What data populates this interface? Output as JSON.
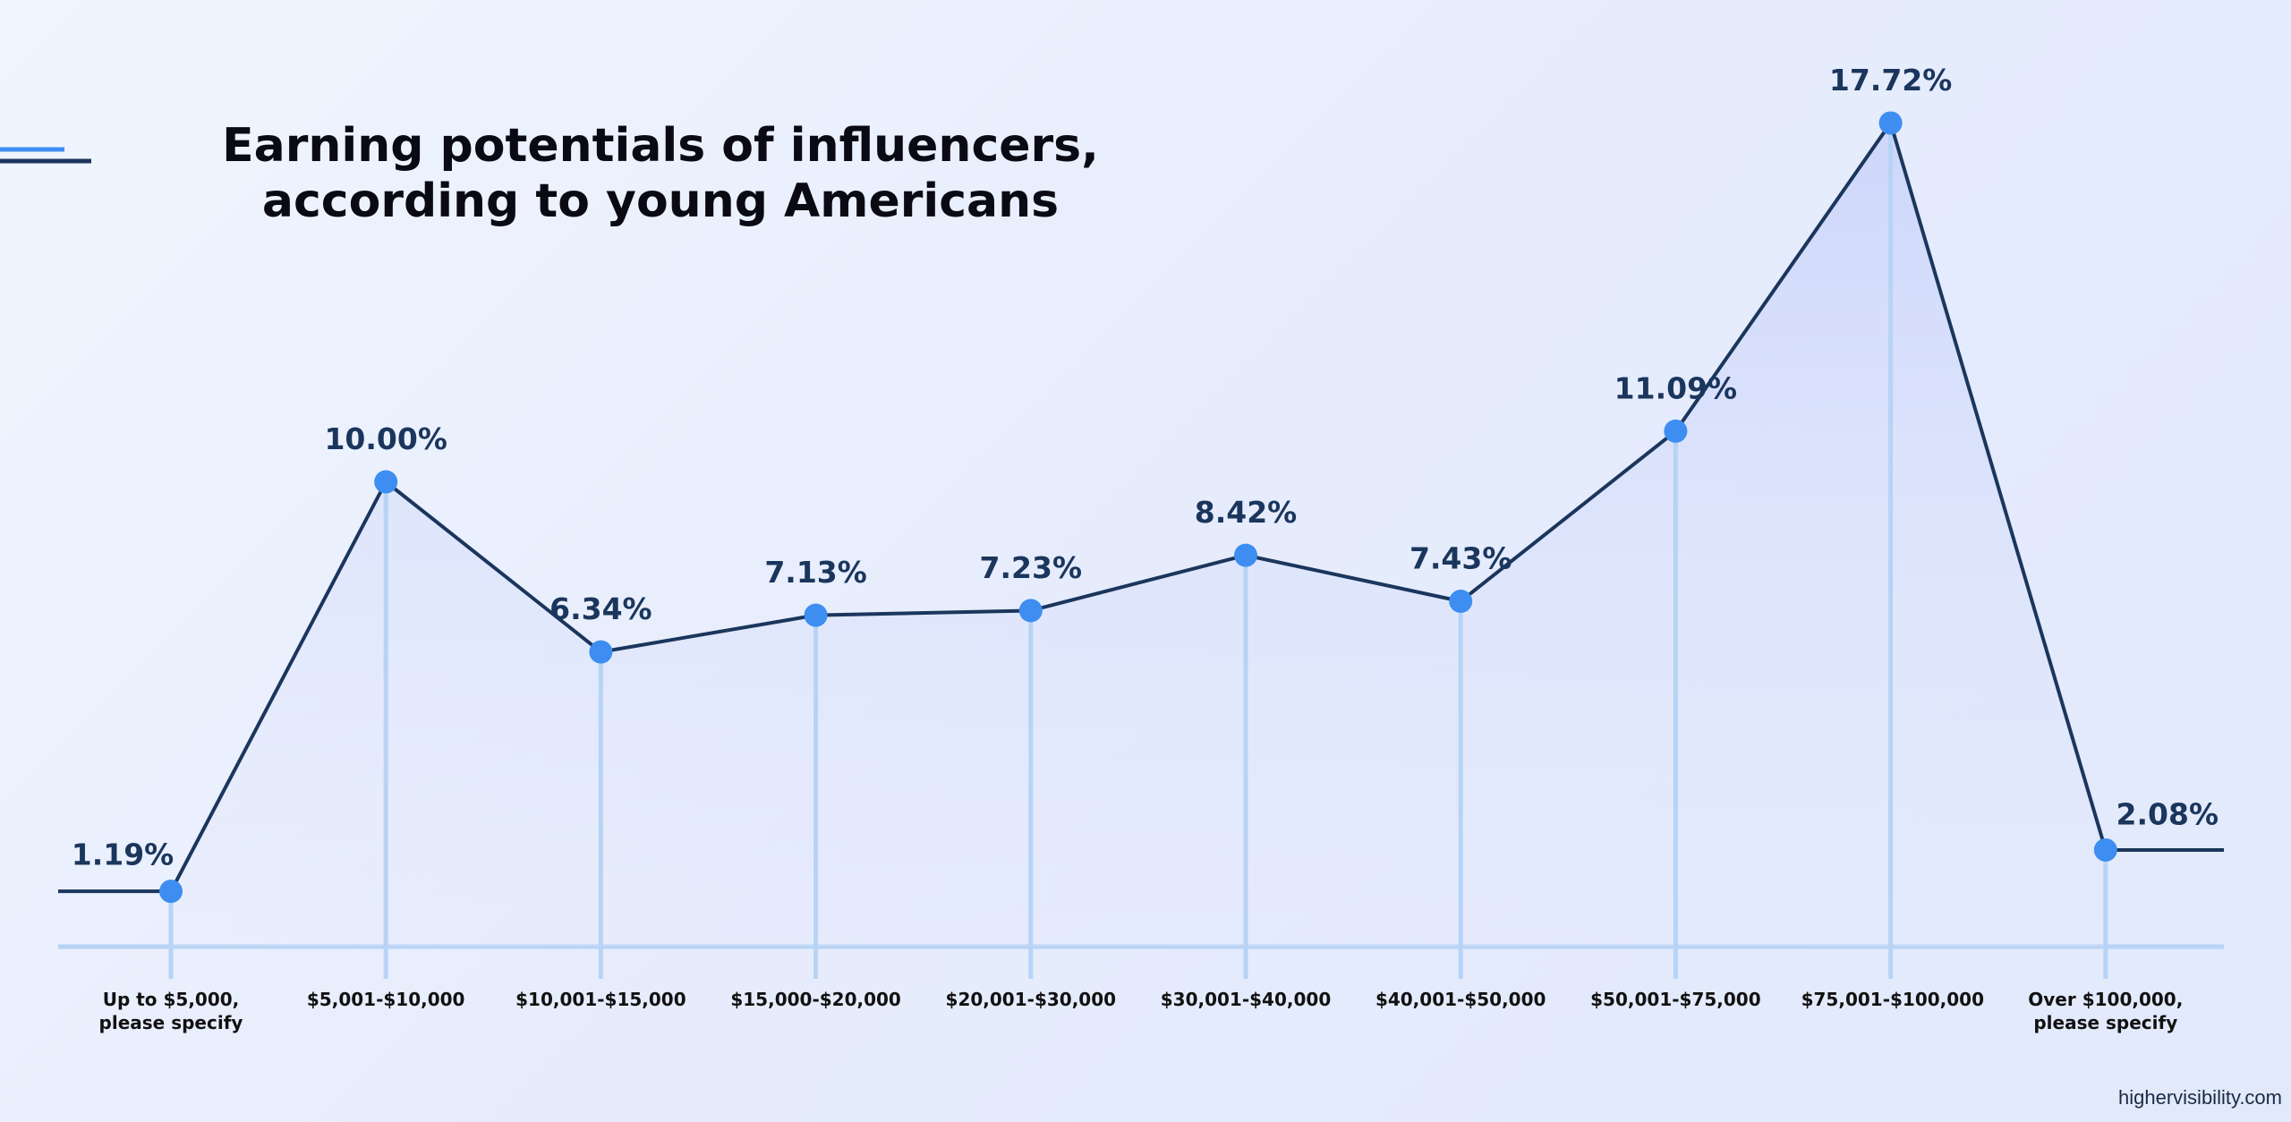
{
  "chart_data": {
    "type": "line",
    "title": "Earning potentials of influencers, according to young Americans",
    "categories": [
      "Up to $5,000, please specify",
      "$5,001-$10,000",
      "$10,001-$15,000",
      "$15,000-$20,000",
      "$20,001-$30,000",
      "$30,001-$40,000",
      "$40,001-$50,000",
      "$50,001-$75,000",
      "$75,001-$100,000",
      "Over $100,000, please specify"
    ],
    "values": [
      1.19,
      10.0,
      6.34,
      7.13,
      7.23,
      8.42,
      7.43,
      11.09,
      17.72,
      2.08
    ],
    "value_labels": [
      "1.19%",
      "10.00%",
      "6.34%",
      "7.13%",
      "7.23%",
      "8.42%",
      "7.43%",
      "11.09%",
      "17.72%",
      "2.08%"
    ],
    "ylim": [
      0,
      20
    ],
    "color": "#1b365d",
    "marker_color": "#3d8ef0",
    "source": "highervisibility.com"
  }
}
